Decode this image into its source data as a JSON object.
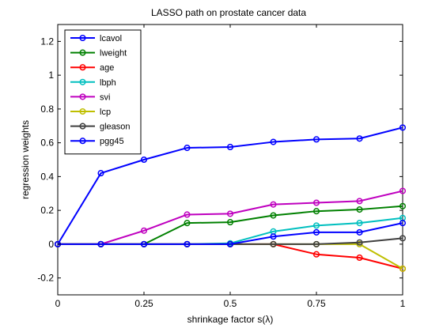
{
  "chart_data": {
    "type": "line",
    "title": "LASSO path on prostate cancer data",
    "xlabel": "shrinkage factor s(λ)",
    "ylabel": "regression weights",
    "xlim": [
      0,
      1
    ],
    "ylim": [
      -0.3,
      1.3
    ],
    "x_ticks": [
      0,
      0.25,
      0.5,
      0.75,
      1
    ],
    "x_tick_labels": [
      "0",
      "0.25",
      "0.5",
      "0.75",
      "1"
    ],
    "y_ticks": [
      -0.2,
      0,
      0.2,
      0.4,
      0.6,
      0.8,
      1,
      1.2
    ],
    "y_tick_labels": [
      "-0.2",
      "0",
      "0.2",
      "0.4",
      "0.6",
      "0.8",
      "1",
      "1.2"
    ],
    "grid": false,
    "legend_position": "top-left",
    "x": [
      0,
      0.125,
      0.25,
      0.375,
      0.5,
      0.625,
      0.75,
      0.875,
      1
    ],
    "series": [
      {
        "name": "lcavol",
        "color": "#0000ff",
        "values": [
          0,
          0.42,
          0.5,
          0.57,
          0.575,
          0.605,
          0.62,
          0.625,
          0.69
        ]
      },
      {
        "name": "lweight",
        "color": "#008000",
        "values": [
          0,
          0,
          0,
          0.125,
          0.13,
          0.17,
          0.195,
          0.205,
          0.225
        ]
      },
      {
        "name": "age",
        "color": "#ff0000",
        "values": [
          0,
          0,
          0,
          0,
          0,
          0,
          -0.06,
          -0.08,
          -0.145
        ]
      },
      {
        "name": "lbph",
        "color": "#00bfbf",
        "values": [
          0,
          0,
          0,
          0,
          0.005,
          0.075,
          0.11,
          0.125,
          0.155
        ]
      },
      {
        "name": "svi",
        "color": "#bf00bf",
        "values": [
          0,
          0,
          0.08,
          0.175,
          0.18,
          0.235,
          0.245,
          0.255,
          0.315
        ]
      },
      {
        "name": "lcp",
        "color": "#bfbf00",
        "values": [
          0,
          0,
          0,
          0,
          0,
          0,
          0,
          0,
          -0.145
        ]
      },
      {
        "name": "gleason",
        "color": "#404040",
        "values": [
          0,
          0,
          0,
          0,
          0,
          0,
          0,
          0.01,
          0.035
        ]
      },
      {
        "name": "pgg45",
        "color": "#0000ff",
        "values": [
          0,
          0,
          0,
          0,
          0,
          0.045,
          0.07,
          0.07,
          0.125
        ]
      }
    ]
  }
}
